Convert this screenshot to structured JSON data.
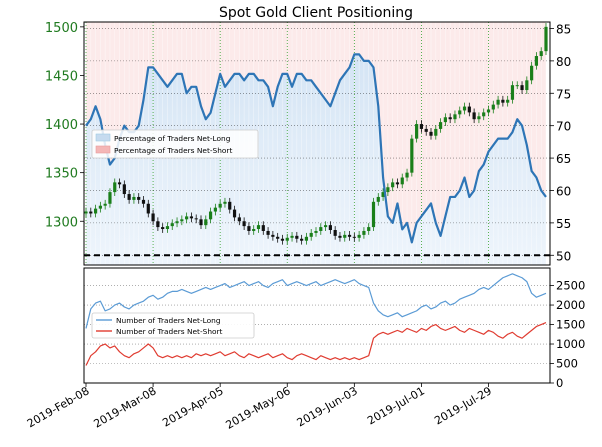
{
  "chart_data": [
    {
      "type": "line",
      "title": "Spot Gold Client Positioning",
      "left_axis": {
        "ticks": [
          "1300",
          "1350",
          "1400",
          "1450",
          "1500"
        ],
        "color": "#1f7a1f",
        "range": [
          1255,
          1505
        ]
      },
      "right_axis": {
        "ticks": [
          "50",
          "55",
          "60",
          "65",
          "70",
          "75",
          "80",
          "85"
        ],
        "range": [
          48.5,
          86
        ]
      },
      "legend": {
        "position": "center-left",
        "entries": [
          {
            "label": "Percentage of Traders Net-Long",
            "color": "#c6dbef"
          },
          {
            "label": "Percentage of Traders Net-Short",
            "color": "#f4b6b6"
          }
        ]
      },
      "grid": true,
      "reference_line": {
        "value": 50,
        "style": "dashed",
        "color": "#000000"
      },
      "series": [
        {
          "kind": "candlestick-price",
          "axis": "left",
          "values": [
            1310,
            1308,
            1313,
            1316,
            1318,
            1330,
            1340,
            1338,
            1328,
            1322,
            1325,
            1322,
            1318,
            1308,
            1300,
            1294,
            1292,
            1295,
            1298,
            1300,
            1302,
            1305,
            1303,
            1302,
            1296,
            1302,
            1310,
            1314,
            1318,
            1320,
            1312,
            1304,
            1300,
            1295,
            1290,
            1292,
            1296,
            1290,
            1286,
            1284,
            1282,
            1280,
            1283,
            1285,
            1282,
            1280,
            1284,
            1288,
            1290,
            1294,
            1296,
            1291,
            1285,
            1283,
            1286,
            1284,
            1283,
            1286,
            1290,
            1294,
            1320,
            1325,
            1330,
            1335,
            1340,
            1338,
            1345,
            1350,
            1385,
            1400,
            1395,
            1392,
            1388,
            1395,
            1402,
            1407,
            1405,
            1410,
            1414,
            1418,
            1412,
            1405,
            1408,
            1412,
            1415,
            1420,
            1425,
            1422,
            1425,
            1440,
            1440,
            1435,
            1445,
            1460,
            1470,
            1475,
            1500
          ]
        },
        {
          "name": "Percentage of Traders Net-Long",
          "axis": "right",
          "color": "#2e75b6",
          "values": [
            70,
            71,
            73,
            71,
            67,
            64,
            65,
            68,
            70,
            69,
            69,
            70,
            74,
            79,
            79,
            78,
            77,
            76,
            77,
            78,
            78,
            75,
            76,
            76,
            73,
            71,
            72,
            75,
            78,
            76,
            77,
            78,
            78,
            77,
            78,
            78,
            77,
            77,
            76,
            73,
            76,
            78,
            78,
            76,
            78,
            78,
            77,
            77,
            76,
            75,
            74,
            73,
            75,
            77,
            78,
            79,
            81,
            81,
            80,
            80,
            79,
            73,
            62,
            56,
            55,
            58,
            54,
            55,
            52,
            55,
            56,
            57,
            58,
            55,
            53,
            56,
            59,
            59,
            60,
            62,
            59,
            60,
            63,
            64,
            66,
            67,
            68,
            68,
            68,
            69,
            71,
            70,
            67,
            63,
            62,
            60,
            59
          ]
        }
      ]
    },
    {
      "type": "line",
      "right_axis": {
        "ticks": [
          "0",
          "500",
          "1000",
          "1500",
          "2000",
          "2500"
        ],
        "range": [
          0,
          2950
        ]
      },
      "x_tick_labels": [
        "2019-Feb-08",
        "2019-Mar-08",
        "2019-Apr-05",
        "2019-May-06",
        "2019-Jun-03",
        "2019-Jul-01",
        "2019-Jul-29"
      ],
      "legend": {
        "position": "center-left",
        "entries": [
          {
            "label": "Number of Traders Net-Long",
            "color": "#5b9bd5"
          },
          {
            "label": "Number of Traders Net-Short",
            "color": "#e03c31"
          }
        ]
      },
      "grid": true,
      "series": [
        {
          "name": "Number of Traders Net-Long",
          "color": "#5b9bd5",
          "values": [
            1400,
            1900,
            2050,
            2100,
            1850,
            1900,
            2000,
            2050,
            1950,
            1900,
            2000,
            2050,
            2100,
            2200,
            2250,
            2150,
            2200,
            2300,
            2350,
            2350,
            2400,
            2350,
            2300,
            2350,
            2400,
            2450,
            2400,
            2450,
            2500,
            2550,
            2450,
            2500,
            2550,
            2600,
            2500,
            2550,
            2600,
            2500,
            2450,
            2550,
            2600,
            2650,
            2500,
            2550,
            2600,
            2550,
            2500,
            2550,
            2600,
            2500,
            2550,
            2600,
            2650,
            2600,
            2550,
            2600,
            2650,
            2550,
            2500,
            2450,
            2050,
            1850,
            1750,
            1700,
            1750,
            1800,
            1700,
            1750,
            1800,
            1850,
            1950,
            2000,
            1900,
            1950,
            2050,
            2100,
            2000,
            2050,
            2150,
            2200,
            2250,
            2300,
            2400,
            2450,
            2400,
            2500,
            2600,
            2700,
            2750,
            2800,
            2750,
            2700,
            2600,
            2300,
            2200,
            2250,
            2300
          ]
        },
        {
          "name": "Number of Traders Net-Short",
          "color": "#e03c31",
          "values": [
            450,
            700,
            800,
            950,
            1000,
            900,
            950,
            800,
            700,
            650,
            750,
            800,
            900,
            1000,
            900,
            700,
            650,
            700,
            650,
            700,
            650,
            700,
            650,
            750,
            700,
            750,
            700,
            750,
            800,
            700,
            750,
            800,
            700,
            650,
            750,
            700,
            650,
            700,
            750,
            650,
            700,
            750,
            650,
            600,
            700,
            750,
            700,
            650,
            600,
            700,
            650,
            600,
            650,
            600,
            650,
            600,
            650,
            600,
            650,
            700,
            1150,
            1250,
            1300,
            1250,
            1300,
            1350,
            1300,
            1400,
            1350,
            1300,
            1400,
            1350,
            1450,
            1500,
            1400,
            1350,
            1400,
            1450,
            1350,
            1300,
            1400,
            1350,
            1300,
            1250,
            1350,
            1300,
            1200,
            1150,
            1250,
            1300,
            1200,
            1150,
            1250,
            1350,
            1450,
            1500,
            1550
          ]
        }
      ]
    }
  ]
}
